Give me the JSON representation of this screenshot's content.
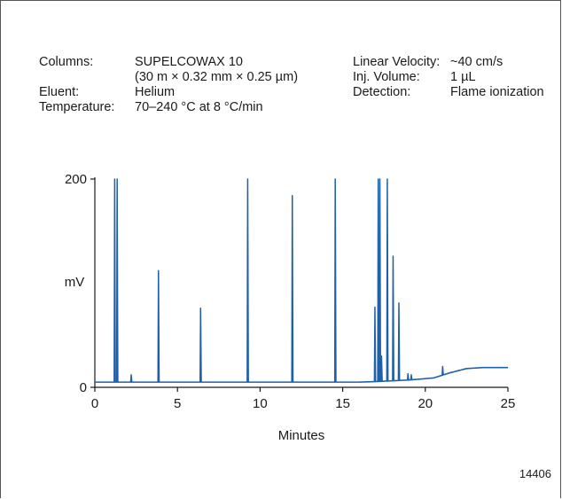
{
  "conditions_left": [
    {
      "key": "Columns:",
      "value": "SUPELCOWAX 10"
    },
    {
      "key": "",
      "value": "(30 m × 0.32 mm × 0.25 µm)"
    },
    {
      "key": "Eluent:",
      "value": "Helium"
    },
    {
      "key": "Temperature:",
      "value": "70–240 °C at 8 °C/min"
    }
  ],
  "conditions_right": [
    {
      "key": "Linear Velocity:",
      "value": "~40 cm/s"
    },
    {
      "key": "Inj. Volume:",
      "value": "1 µL"
    },
    {
      "key": "Detection:",
      "value": "Flame ionization"
    }
  ],
  "figure_id": "14406",
  "colors": {
    "trace": "#2060a8",
    "axis": "#1a1a1a"
  },
  "chart_data": {
    "type": "line",
    "title": "",
    "xlabel": "Minutes",
    "ylabel": "mV",
    "xlim": [
      0,
      25
    ],
    "ylim": [
      0,
      200
    ],
    "xticks": [
      0,
      5,
      10,
      15,
      20,
      25
    ],
    "yticks": [
      0,
      200
    ],
    "grid": false,
    "baseline": [
      [
        0,
        5
      ],
      [
        16,
        5
      ],
      [
        17,
        5.5
      ],
      [
        19,
        7
      ],
      [
        20.5,
        9
      ],
      [
        21.5,
        14
      ],
      [
        22.5,
        18
      ],
      [
        23.5,
        19
      ],
      [
        25,
        19
      ]
    ],
    "peaks": [
      {
        "rt": 1.2,
        "height": 200
      },
      {
        "rt": 1.35,
        "height": 200
      },
      {
        "rt": 2.2,
        "height": 12
      },
      {
        "rt": 3.85,
        "height": 112
      },
      {
        "rt": 6.4,
        "height": 76
      },
      {
        "rt": 9.25,
        "height": 200
      },
      {
        "rt": 11.95,
        "height": 184
      },
      {
        "rt": 14.55,
        "height": 200
      },
      {
        "rt": 16.95,
        "height": 77
      },
      {
        "rt": 17.15,
        "height": 200
      },
      {
        "rt": 17.25,
        "height": 200
      },
      {
        "rt": 17.35,
        "height": 30
      },
      {
        "rt": 17.7,
        "height": 200
      },
      {
        "rt": 18.05,
        "height": 126
      },
      {
        "rt": 18.4,
        "height": 81
      },
      {
        "rt": 18.95,
        "height": 13
      },
      {
        "rt": 19.15,
        "height": 12
      },
      {
        "rt": 21.05,
        "height": 20
      }
    ]
  }
}
